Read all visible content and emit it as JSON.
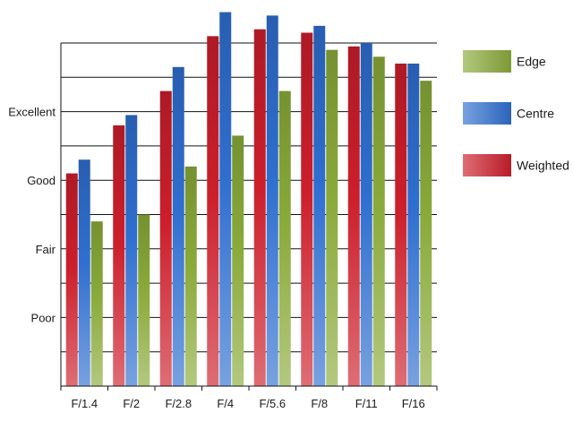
{
  "chart_data": {
    "type": "bar",
    "categories": [
      "F/1.4",
      "F/2",
      "F/2.8",
      "F/4",
      "F/5.6",
      "F/8",
      "F/11",
      "F/16"
    ],
    "series": [
      {
        "name": "Weighted",
        "values": [
          6.2,
          7.6,
          8.6,
          10.2,
          10.4,
          10.3,
          9.9,
          9.4
        ],
        "color": "#cc1f2b"
      },
      {
        "name": "Centre",
        "values": [
          6.6,
          7.9,
          9.3,
          10.9,
          10.8,
          10.5,
          10.0,
          9.4
        ],
        "color": "#2f6fd0"
      },
      {
        "name": "Edge",
        "values": [
          4.8,
          5.0,
          6.4,
          7.3,
          8.6,
          9.8,
          9.6,
          8.9
        ],
        "color": "#8aaa3a"
      }
    ],
    "y_tick_labels": [
      {
        "value": 2,
        "label": "Poor"
      },
      {
        "value": 4,
        "label": "Fair"
      },
      {
        "value": 6,
        "label": "Good"
      },
      {
        "value": 8,
        "label": "Excellent"
      }
    ],
    "ylim": [
      0,
      10
    ],
    "grid": true,
    "legend_position": "right",
    "legend_order": [
      "Edge",
      "Centre",
      "Weighted"
    ]
  }
}
